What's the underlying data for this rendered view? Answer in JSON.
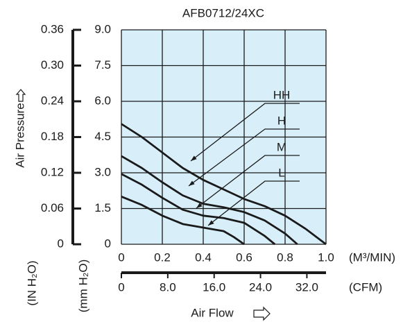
{
  "chart_data": {
    "type": "line",
    "title": "AFB0712/24XC",
    "x_label": "Air Flow",
    "y_label": "Air Pressure",
    "x_unit": "(M³/MIN)",
    "x2_unit": "(CFM)",
    "y_unit": "(mm H₂O)",
    "y2_unit": "(IN H₂O)",
    "xlim": [
      0,
      1
    ],
    "xticks": [
      0,
      0.2,
      0.4,
      0.6,
      0.8,
      {
        "value": 1,
        "label": "1.0"
      }
    ],
    "x2lim": [
      0,
      35.3
    ],
    "x2ticks": [
      0,
      {
        "value": 8,
        "label": "8.0"
      },
      {
        "value": 16,
        "label": "16.0"
      },
      {
        "value": 24,
        "label": "24.0"
      },
      {
        "value": 32,
        "label": "32.0"
      }
    ],
    "ylim": [
      0,
      9
    ],
    "yticks": [
      0,
      1.5,
      {
        "value": 3,
        "label": "3.0"
      },
      4.5,
      {
        "value": 6,
        "label": "6.0"
      },
      7.5,
      {
        "value": 9,
        "label": "9.0"
      }
    ],
    "y2lim": [
      0,
      0.36
    ],
    "y2ticks": [
      0,
      0.06,
      {
        "value": 0.12,
        "label": "0.12"
      },
      0.18,
      0.24,
      {
        "value": 0.3,
        "label": "0.30"
      },
      0.36
    ],
    "grid": true,
    "background": "#d8effa",
    "series": [
      {
        "name": "HH",
        "color": "#1a1a1a",
        "x": [
          0,
          0.1,
          0.2,
          0.3,
          0.4,
          0.5,
          0.6,
          0.7,
          0.8,
          0.9,
          1.0
        ],
        "values": [
          5.05,
          4.5,
          3.85,
          3.2,
          2.7,
          2.3,
          1.9,
          1.6,
          1.2,
          0.65,
          0
        ]
      },
      {
        "name": "H",
        "color": "#1a1a1a",
        "x": [
          0,
          0.1,
          0.2,
          0.3,
          0.4,
          0.5,
          0.6,
          0.7,
          0.8,
          0.86
        ],
        "values": [
          3.7,
          3.2,
          2.6,
          2.05,
          1.7,
          1.55,
          1.35,
          1.0,
          0.45,
          0
        ]
      },
      {
        "name": "M",
        "color": "#1a1a1a",
        "x": [
          0,
          0.1,
          0.2,
          0.3,
          0.4,
          0.5,
          0.6,
          0.7,
          0.75
        ],
        "values": [
          2.95,
          2.5,
          1.95,
          1.45,
          1.2,
          1.1,
          0.9,
          0.35,
          0
        ]
      },
      {
        "name": "L",
        "color": "#1a1a1a",
        "x": [
          0,
          0.1,
          0.2,
          0.3,
          0.4,
          0.5,
          0.55,
          0.6
        ],
        "values": [
          2.0,
          1.65,
          1.2,
          0.85,
          0.7,
          0.55,
          0.3,
          0
        ]
      }
    ]
  }
}
